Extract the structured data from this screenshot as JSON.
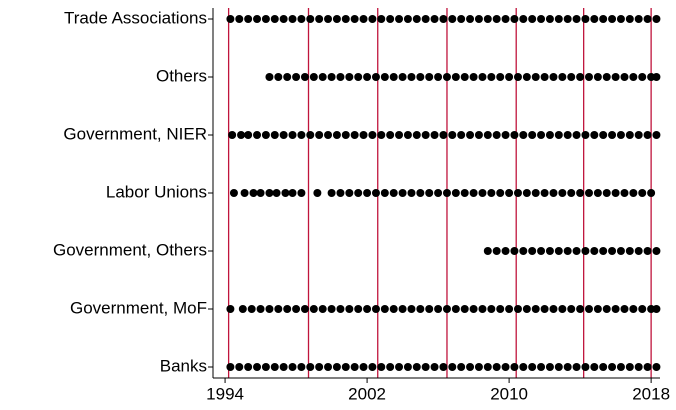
{
  "chart_data": {
    "type": "scatter",
    "color": "#000000",
    "xlim": [
      1993.32,
      2018.5
    ],
    "xticks": [
      1994,
      2002,
      2010,
      2018
    ],
    "vlines": {
      "color": "#c0143c",
      "values": [
        1994.2,
        1998.7,
        2002.6,
        2006.5,
        2010.4,
        2014.2,
        2018.0
      ]
    },
    "series": [
      {
        "name": "Trade Associations",
        "x": [
          1994.3,
          1994.8,
          1995.3,
          1995.8,
          1996.3,
          1996.8,
          1997.3,
          1997.8,
          1998.3,
          1998.8,
          1999.3,
          1999.8,
          2000.3,
          2000.8,
          2001.3,
          2001.8,
          2002.3,
          2002.8,
          2003.3,
          2003.8,
          2004.3,
          2004.8,
          2005.3,
          2005.8,
          2006.3,
          2006.8,
          2007.3,
          2007.8,
          2008.3,
          2008.8,
          2009.3,
          2009.8,
          2010.3,
          2010.8,
          2011.3,
          2011.8,
          2012.3,
          2012.8,
          2013.3,
          2013.8,
          2014.3,
          2014.8,
          2015.3,
          2015.8,
          2016.3,
          2016.8,
          2017.3,
          2017.8,
          2018.3
        ]
      },
      {
        "name": "Others",
        "x": [
          1996.5,
          1997.0,
          1997.5,
          1998.0,
          1998.5,
          1999.0,
          1999.5,
          2000.0,
          2000.5,
          2001.0,
          2001.5,
          2002.0,
          2002.5,
          2003.0,
          2003.5,
          2004.0,
          2004.5,
          2005.0,
          2005.5,
          2006.0,
          2006.5,
          2007.0,
          2007.5,
          2008.0,
          2008.5,
          2009.0,
          2009.5,
          2010.0,
          2010.5,
          2011.0,
          2011.5,
          2012.0,
          2012.5,
          2013.0,
          2013.5,
          2014.0,
          2014.5,
          2015.0,
          2015.5,
          2016.0,
          2016.5,
          2017.0,
          2017.5,
          2018.0,
          2018.3
        ]
      },
      {
        "name": "Government, NIER",
        "x": [
          1994.4,
          1994.9,
          1995.3,
          1995.8,
          1996.3,
          1996.8,
          1997.3,
          1997.8,
          1998.3,
          1998.8,
          1999.3,
          1999.8,
          2000.3,
          2000.8,
          2001.3,
          2001.8,
          2002.3,
          2002.8,
          2003.3,
          2003.8,
          2004.3,
          2004.8,
          2005.3,
          2005.8,
          2006.3,
          2006.8,
          2007.3,
          2007.8,
          2008.3,
          2008.8,
          2009.3,
          2009.8,
          2010.3,
          2010.8,
          2011.3,
          2011.8,
          2012.3,
          2012.8,
          2013.3,
          2013.8,
          2014.3,
          2014.8,
          2015.3,
          2015.8,
          2016.3,
          2016.8,
          2017.3,
          2017.8,
          2018.3
        ]
      },
      {
        "name": "Labor Unions",
        "x": [
          1994.5,
          1995.1,
          1995.6,
          1996.0,
          1996.5,
          1996.9,
          1997.4,
          1997.8,
          1998.3,
          1999.2,
          2000.0,
          2000.5,
          2001.0,
          2001.5,
          2002.0,
          2002.5,
          2003.0,
          2003.5,
          2004.0,
          2004.5,
          2005.0,
          2005.5,
          2006.0,
          2006.5,
          2007.0,
          2007.5,
          2008.0,
          2008.5,
          2009.0,
          2009.5,
          2010.0,
          2010.5,
          2011.0,
          2011.5,
          2012.0,
          2012.5,
          2013.0,
          2013.5,
          2014.0,
          2014.5,
          2015.0,
          2015.5,
          2016.0,
          2016.5,
          2017.0,
          2017.5,
          2018.0
        ]
      },
      {
        "name": "Government, Others",
        "x": [
          2008.8,
          2009.3,
          2009.8,
          2010.3,
          2010.8,
          2011.3,
          2011.8,
          2012.3,
          2012.8,
          2013.3,
          2013.8,
          2014.3,
          2014.8,
          2015.3,
          2015.8,
          2016.3,
          2016.8,
          2017.3,
          2017.8,
          2018.3
        ]
      },
      {
        "name": "Government, MoF",
        "x": [
          1994.3,
          1995.0,
          1995.5,
          1996.0,
          1996.5,
          1997.0,
          1997.5,
          1998.0,
          1998.5,
          1999.0,
          1999.5,
          2000.0,
          2000.5,
          2001.0,
          2001.5,
          2002.0,
          2002.5,
          2003.0,
          2003.5,
          2004.0,
          2004.5,
          2005.0,
          2005.5,
          2006.0,
          2006.5,
          2007.0,
          2007.5,
          2008.0,
          2008.5,
          2009.0,
          2009.5,
          2010.0,
          2010.5,
          2011.0,
          2011.5,
          2012.0,
          2012.5,
          2013.0,
          2013.5,
          2014.0,
          2014.5,
          2015.0,
          2015.5,
          2016.0,
          2016.5,
          2017.0,
          2017.5,
          2018.0,
          2018.3
        ]
      },
      {
        "name": "Banks",
        "x": [
          1994.3,
          1994.8,
          1995.3,
          1995.8,
          1996.3,
          1996.8,
          1997.3,
          1997.8,
          1998.3,
          1998.8,
          1999.3,
          1999.8,
          2000.3,
          2000.8,
          2001.3,
          2001.8,
          2002.3,
          2002.8,
          2003.3,
          2003.8,
          2004.3,
          2004.8,
          2005.3,
          2005.8,
          2006.3,
          2006.8,
          2007.3,
          2007.8,
          2008.3,
          2008.8,
          2009.3,
          2009.8,
          2010.3,
          2010.8,
          2011.3,
          2011.8,
          2012.3,
          2012.8,
          2013.3,
          2013.8,
          2014.3,
          2014.8,
          2015.3,
          2015.8,
          2016.3,
          2016.8,
          2017.3,
          2017.8,
          2018.3
        ]
      }
    ]
  }
}
